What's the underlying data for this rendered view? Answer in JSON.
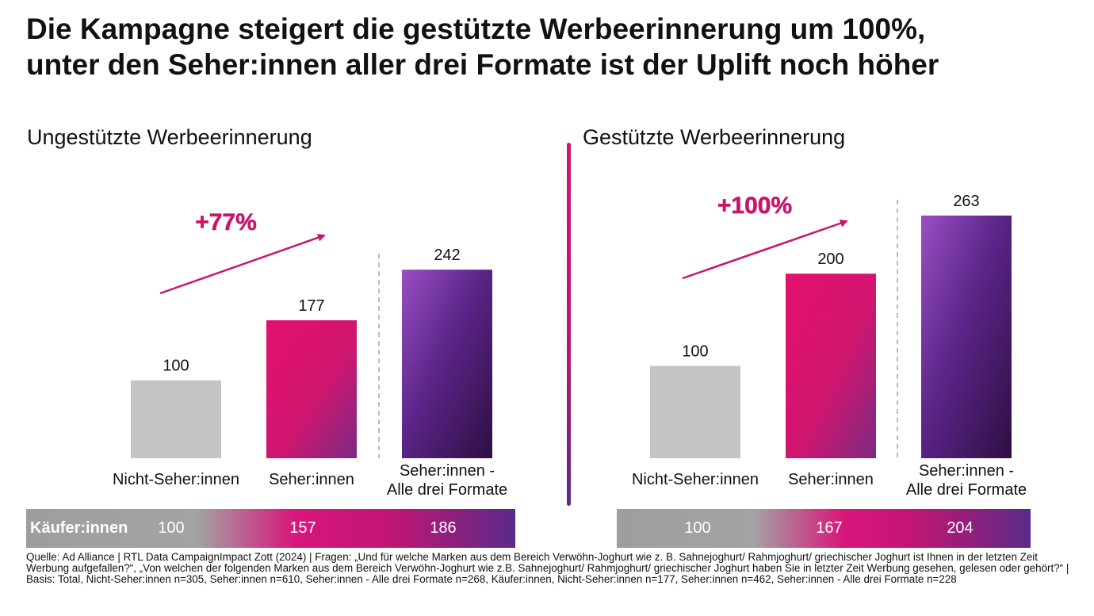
{
  "title_line1": "Die Kampagne steigert die gestützte Werbeerinnerung um 100%,",
  "title_line2": "unter den Seher:innen aller drei Formate ist der Uplift noch höher",
  "colors": {
    "grey": "#c4c4c4",
    "magenta": "#e0176e",
    "purple": "#5a2a88",
    "arrow": "#c8166d"
  },
  "chart_data": [
    {
      "type": "bar",
      "title": "Ungestützte Werbeerinnerung",
      "categories": [
        "Nicht-Seher:innen",
        "Seher:innen",
        "Seher:innen -\nAlle drei Formate"
      ],
      "values": [
        100,
        177,
        242
      ],
      "uplift": "+77%",
      "buyers_label": "Käufer:innen",
      "buyers_values": [
        100,
        157,
        186
      ]
    },
    {
      "type": "bar",
      "title": "Gestützte Werbeerinnerung",
      "categories": [
        "Nicht-Seher:innen",
        "Seher:innen",
        "Seher:innen -\nAlle drei Formate"
      ],
      "values": [
        100,
        200,
        263
      ],
      "uplift": "+100%",
      "buyers_values": [
        100,
        167,
        204
      ]
    }
  ],
  "source": "Quelle: Ad Alliance | RTL Data CampaignImpact Zott (2024) | Fragen: „Und für welche Marken aus dem Bereich Verwöhn-Joghurt wie z. B. Sahnejoghurt/ Rahmjoghurt/ griechischer Joghurt ist Ihnen in der letzten Zeit Werbung aufgefallen?“, „Von welchen der folgenden Marken aus dem Bereich Verwöhn-Joghurt wie z.B. Sahnejoghurt/ Rahmjoghurt/ griechischer Joghurt haben Sie in letzter Zeit Werbung gesehen, gelesen oder gehört?“ | Basis: Total, Nicht-Seher:innen n=305, Seher:innen n=610, Seher:innen - Alle drei Formate n=268, Käufer:innen, Nicht-Seher:innen n=177, Seher:innen n=462, Seher:innen - Alle drei Formate n=228"
}
